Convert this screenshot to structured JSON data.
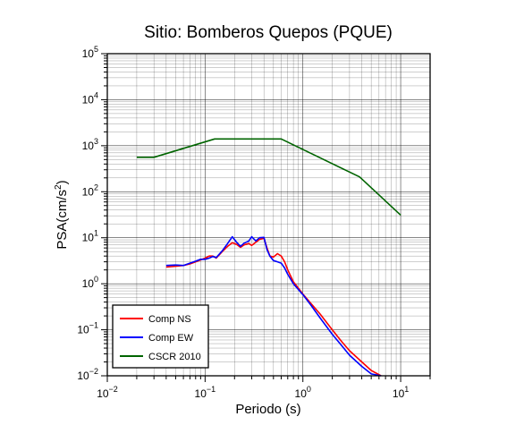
{
  "chart_data": {
    "type": "line",
    "title": "Sitio: Bomberos Quepos (PQUE)",
    "xlabel": "Periodo (s)",
    "ylabel_prefix": "PSA(cm/s",
    "ylabel_sup": "2",
    "ylabel_suffix": ")",
    "x_scale": "log",
    "y_scale": "log",
    "xlim": [
      0.01,
      20
    ],
    "ylim": [
      0.01,
      100000
    ],
    "grid": true,
    "legend_position": "bottom-left",
    "x_ticks": [
      {
        "value": 0.01,
        "base": "10",
        "exp": "−2"
      },
      {
        "value": 0.1,
        "base": "10",
        "exp": "−1"
      },
      {
        "value": 1,
        "base": "10",
        "exp": "0"
      },
      {
        "value": 10,
        "base": "10",
        "exp": "1"
      }
    ],
    "y_ticks": [
      {
        "value": 0.01,
        "base": "10",
        "exp": "−2"
      },
      {
        "value": 0.1,
        "base": "10",
        "exp": "−1"
      },
      {
        "value": 1,
        "base": "10",
        "exp": "0"
      },
      {
        "value": 10,
        "base": "10",
        "exp": "1"
      },
      {
        "value": 100,
        "base": "10",
        "exp": "2"
      },
      {
        "value": 1000,
        "base": "10",
        "exp": "3"
      },
      {
        "value": 10000,
        "base": "10",
        "exp": "4"
      },
      {
        "value": 100000,
        "base": "10",
        "exp": "5"
      }
    ],
    "series": [
      {
        "name": "Comp NS",
        "color": "#ff0000",
        "x": [
          0.04,
          0.05,
          0.06,
          0.07,
          0.08,
          0.09,
          0.1,
          0.11,
          0.12,
          0.13,
          0.15,
          0.17,
          0.19,
          0.21,
          0.23,
          0.25,
          0.28,
          0.3,
          0.33,
          0.36,
          0.4,
          0.43,
          0.46,
          0.5,
          0.55,
          0.6,
          0.65,
          0.7,
          0.8,
          0.9,
          1.0,
          1.2,
          1.5,
          2.0,
          2.5,
          3.0,
          4.0,
          5.0,
          6.3
        ],
        "y": [
          2.3,
          2.4,
          2.5,
          2.7,
          3.0,
          3.3,
          3.6,
          4.0,
          4.0,
          3.6,
          5.0,
          6.5,
          7.8,
          7.2,
          6.2,
          7.0,
          7.5,
          6.8,
          8.0,
          9.2,
          9.8,
          6.0,
          4.0,
          3.8,
          4.5,
          4.0,
          3.0,
          2.0,
          1.1,
          0.8,
          0.6,
          0.38,
          0.22,
          0.1,
          0.055,
          0.035,
          0.02,
          0.013,
          0.01
        ]
      },
      {
        "name": "Comp EW",
        "color": "#0000ff",
        "x": [
          0.04,
          0.05,
          0.06,
          0.07,
          0.08,
          0.09,
          0.1,
          0.11,
          0.12,
          0.13,
          0.15,
          0.17,
          0.19,
          0.21,
          0.23,
          0.25,
          0.28,
          0.3,
          0.33,
          0.36,
          0.4,
          0.43,
          0.46,
          0.5,
          0.55,
          0.6,
          0.65,
          0.7,
          0.8,
          0.9,
          1.0,
          1.2,
          1.5,
          2.0,
          2.5,
          3.0,
          4.0,
          5.0,
          6.3
        ],
        "y": [
          2.5,
          2.55,
          2.5,
          2.8,
          3.1,
          3.4,
          3.4,
          3.6,
          3.9,
          3.7,
          5.2,
          7.5,
          10.5,
          8.0,
          6.5,
          7.6,
          8.5,
          10.5,
          8.5,
          10.0,
          10.2,
          5.5,
          4.0,
          3.2,
          3.0,
          2.8,
          2.2,
          1.6,
          1.0,
          0.75,
          0.58,
          0.35,
          0.18,
          0.08,
          0.045,
          0.028,
          0.016,
          0.011,
          0.0085
        ]
      },
      {
        "name": "CSCR 2010",
        "color": "#006400",
        "x": [
          0.02,
          0.03,
          0.125,
          0.6,
          3.8,
          10
        ],
        "y": [
          560,
          560,
          1400,
          1400,
          210,
          31
        ]
      }
    ]
  }
}
